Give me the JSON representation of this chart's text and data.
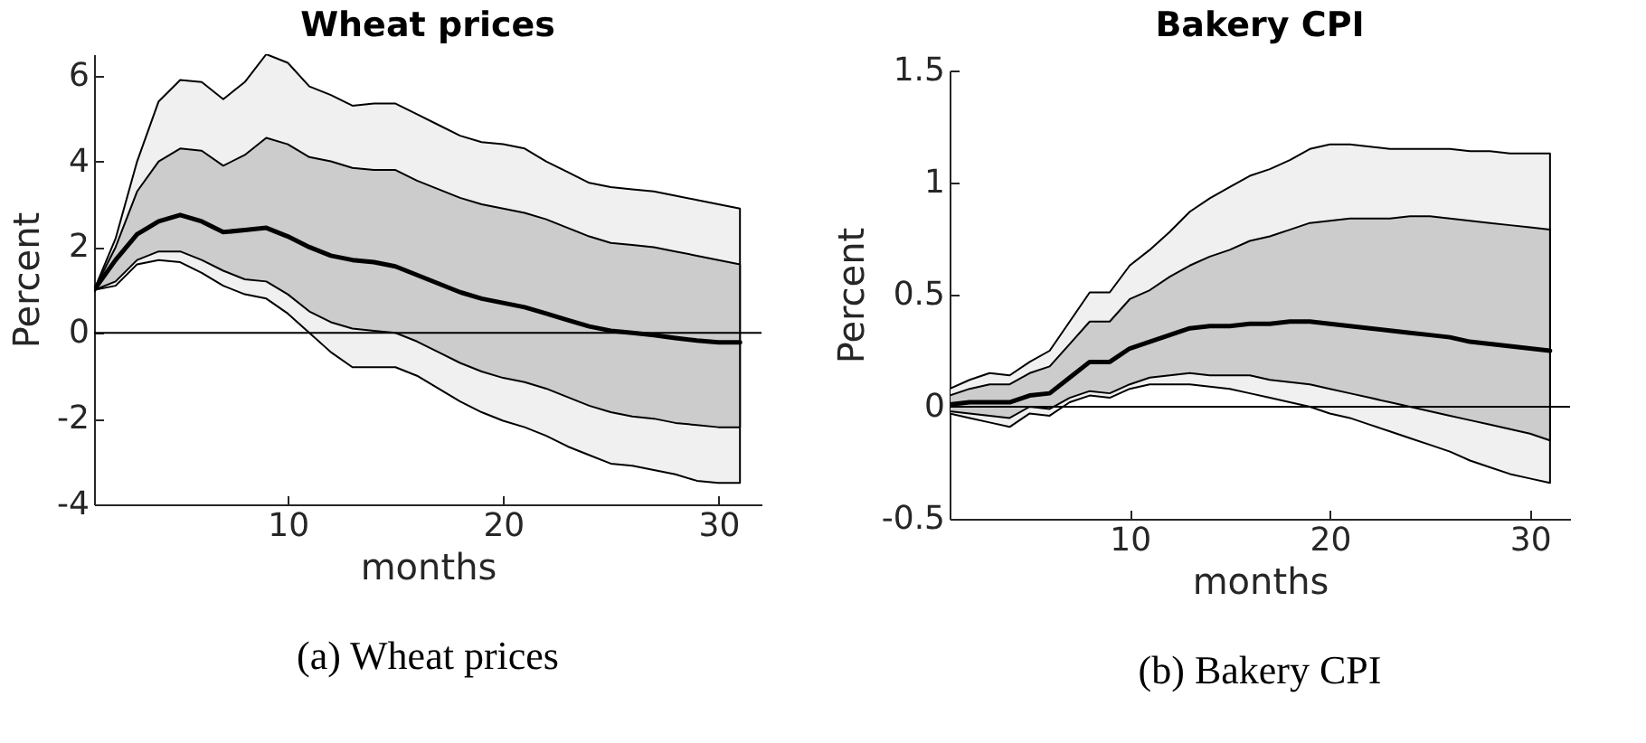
{
  "chart_data": [
    {
      "type": "line",
      "title": "Wheat prices",
      "xlabel": "months",
      "ylabel": "Percent",
      "annotations": [
        "(a) Wheat prices"
      ],
      "x": [
        1,
        2,
        3,
        4,
        5,
        6,
        7,
        8,
        9,
        10,
        11,
        12,
        13,
        14,
        15,
        16,
        17,
        18,
        19,
        20,
        21,
        22,
        23,
        24,
        25,
        26,
        27,
        28,
        29,
        30,
        31
      ],
      "series": [
        {
          "type": "line",
          "color": "#000000",
          "values": [
            null,
            null,
            null,
            null,
            null,
            null,
            null,
            null,
            null,
            null,
            null,
            null,
            null,
            null,
            null,
            null,
            null,
            null,
            null,
            null,
            null,
            null,
            null,
            null,
            null,
            null,
            null,
            null,
            null,
            null,
            null
          ],
          "upper": [
            1.0,
            2.2,
            4.0,
            5.4,
            5.9,
            5.85,
            5.45,
            5.85,
            6.5,
            6.3,
            5.75,
            5.55,
            5.3,
            5.35,
            5.35,
            5.1,
            4.85,
            4.6,
            4.45,
            4.4,
            4.3,
            4.0,
            3.75,
            3.5,
            3.4,
            3.35,
            3.3,
            3.2,
            3.1,
            3.0,
            2.9
          ],
          "lower": [
            1.0,
            1.1,
            1.6,
            1.7,
            1.65,
            1.4,
            1.1,
            0.9,
            0.8,
            0.45,
            0.0,
            -0.45,
            -0.8,
            -0.8,
            -0.8,
            -1.0,
            -1.3,
            -1.6,
            -1.85,
            -2.05,
            -2.2,
            -2.4,
            -2.65,
            -2.85,
            -3.05,
            -3.1,
            -3.2,
            -3.3,
            -3.45,
            -3.5,
            -3.5
          ]
        },
        {
          "type": "line",
          "color": "#000000",
          "values": [
            1.0,
            1.7,
            2.3,
            2.6,
            2.75,
            2.6,
            2.35,
            2.4,
            2.45,
            2.25,
            2.0,
            1.8,
            1.7,
            1.65,
            1.55,
            1.35,
            1.15,
            0.95,
            0.8,
            0.7,
            0.6,
            0.45,
            0.3,
            0.15,
            0.05,
            0.0,
            -0.05,
            -0.12,
            -0.18,
            -0.22,
            -0.22
          ],
          "upper": [
            1.0,
            2.0,
            3.3,
            4.0,
            4.3,
            4.25,
            3.9,
            4.15,
            4.55,
            4.4,
            4.1,
            4.0,
            3.85,
            3.8,
            3.8,
            3.55,
            3.35,
            3.15,
            3.0,
            2.9,
            2.8,
            2.65,
            2.45,
            2.25,
            2.1,
            2.05,
            2.0,
            1.9,
            1.8,
            1.7,
            1.6
          ],
          "lower": [
            1.0,
            1.2,
            1.7,
            1.9,
            1.9,
            1.7,
            1.45,
            1.25,
            1.2,
            0.9,
            0.5,
            0.25,
            0.1,
            0.05,
            0.0,
            -0.2,
            -0.45,
            -0.7,
            -0.9,
            -1.05,
            -1.15,
            -1.3,
            -1.5,
            -1.7,
            -1.85,
            -1.95,
            -2.0,
            -2.1,
            -2.15,
            -2.2,
            -2.2
          ]
        }
      ],
      "xlim": [
        1,
        32
      ],
      "xticks": [
        10,
        20,
        30
      ],
      "ylim": [
        -4,
        6.5
      ],
      "yticks": [
        -4,
        -2,
        0,
        2,
        4,
        6
      ],
      "ref_lines": [
        {
          "axis": "y",
          "value": 0,
          "color": "#000000"
        }
      ]
    },
    {
      "type": "line",
      "title": "Bakery CPI",
      "xlabel": "months",
      "ylabel": "Percent",
      "annotations": [
        "(b) Bakery CPI"
      ],
      "x": [
        1,
        2,
        3,
        4,
        5,
        6,
        7,
        8,
        9,
        10,
        11,
        12,
        13,
        14,
        15,
        16,
        17,
        18,
        19,
        20,
        21,
        22,
        23,
        24,
        25,
        26,
        27,
        28,
        29,
        30,
        31
      ],
      "series": [
        {
          "type": "line",
          "color": "#000000",
          "values": [
            null,
            null,
            null,
            null,
            null,
            null,
            null,
            null,
            null,
            null,
            null,
            null,
            null,
            null,
            null,
            null,
            null,
            null,
            null,
            null,
            null,
            null,
            null,
            null,
            null,
            null,
            null,
            null,
            null,
            null,
            null
          ],
          "upper": [
            0.08,
            0.12,
            0.15,
            0.14,
            0.2,
            0.25,
            0.38,
            0.51,
            0.51,
            0.63,
            0.7,
            0.78,
            0.87,
            0.93,
            0.98,
            1.03,
            1.06,
            1.1,
            1.15,
            1.17,
            1.17,
            1.16,
            1.15,
            1.15,
            1.15,
            1.15,
            1.14,
            1.14,
            1.13,
            1.13,
            1.13
          ],
          "lower": [
            -0.03,
            -0.05,
            -0.07,
            -0.09,
            -0.03,
            -0.04,
            0.02,
            0.05,
            0.04,
            0.08,
            0.1,
            0.1,
            0.1,
            0.09,
            0.08,
            0.06,
            0.04,
            0.02,
            0.0,
            -0.03,
            -0.05,
            -0.08,
            -0.11,
            -0.14,
            -0.17,
            -0.2,
            -0.24,
            -0.27,
            -0.3,
            -0.32,
            -0.34
          ]
        },
        {
          "type": "line",
          "color": "#000000",
          "values": [
            0.01,
            0.02,
            0.02,
            0.02,
            0.05,
            0.06,
            0.13,
            0.2,
            0.2,
            0.26,
            0.29,
            0.32,
            0.35,
            0.36,
            0.36,
            0.37,
            0.37,
            0.38,
            0.38,
            0.37,
            0.36,
            0.35,
            0.34,
            0.33,
            0.32,
            0.31,
            0.29,
            0.28,
            0.27,
            0.26,
            0.25
          ],
          "upper": [
            0.05,
            0.08,
            0.1,
            0.1,
            0.15,
            0.18,
            0.28,
            0.38,
            0.38,
            0.48,
            0.52,
            0.58,
            0.63,
            0.67,
            0.7,
            0.74,
            0.76,
            0.79,
            0.82,
            0.83,
            0.84,
            0.84,
            0.84,
            0.85,
            0.85,
            0.84,
            0.83,
            0.82,
            0.81,
            0.8,
            0.79
          ],
          "lower": [
            -0.02,
            -0.03,
            -0.04,
            -0.05,
            0.0,
            -0.01,
            0.04,
            0.07,
            0.06,
            0.1,
            0.13,
            0.14,
            0.15,
            0.14,
            0.14,
            0.14,
            0.12,
            0.11,
            0.1,
            0.08,
            0.06,
            0.04,
            0.02,
            0.0,
            -0.02,
            -0.04,
            -0.06,
            -0.08,
            -0.1,
            -0.12,
            -0.15
          ]
        }
      ],
      "xlim": [
        1,
        32
      ],
      "xticks": [
        10,
        20,
        30
      ],
      "ylim": [
        -0.5,
        1.5
      ],
      "yticks": [
        -0.5,
        0,
        0.5,
        1,
        1.5
      ],
      "ref_lines": [
        {
          "axis": "y",
          "value": 0,
          "color": "#000000"
        }
      ]
    }
  ]
}
